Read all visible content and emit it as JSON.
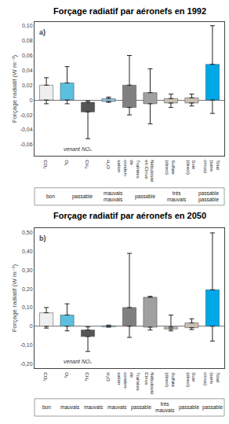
{
  "chart_data": [
    {
      "type": "bar",
      "title": "Forçage radiatif par aéronefs en 1992",
      "ylabel": "Forçage radiatif (W m⁻²)",
      "categories": [
        "CO₂",
        "O₃",
        "CH₄",
        "H₂O",
        "Traînées\nde\nconden-\nsation",
        "Nébulosité\nen Cirrus",
        "Sulfate\n(direct)",
        "Suie\n(direct)",
        "Total\n(sans\ncirrus)"
      ],
      "bottoms": [
        0.0,
        0.0,
        -0.016,
        -0.002,
        -0.01,
        -0.005,
        -0.004,
        -0.004,
        0.0
      ],
      "values": [
        0.02,
        0.023,
        -0.003,
        0.002,
        0.02,
        0.01,
        0.002,
        0.003,
        0.048
      ],
      "whisker_low": [
        -0.005,
        -0.005,
        -0.052,
        -0.003,
        -0.02,
        -0.032,
        -0.01,
        -0.008,
        -0.018
      ],
      "whisker_high": [
        0.03,
        0.045,
        -0.001,
        0.004,
        0.06,
        0.042,
        0.008,
        0.008,
        0.1
      ],
      "colors": [
        "#efefef",
        "#5bbfe0",
        "#555555",
        "#90c0dc",
        "#808080",
        "#a0a0a0",
        "#c8bfb0",
        "#c8bfb0",
        "#00a8e8"
      ],
      "ylim": [
        -0.075,
        0.105
      ],
      "yticks": [
        {
          "value": -0.06,
          "label": "-0,06"
        },
        {
          "value": -0.04,
          "label": "-0,04"
        },
        {
          "value": -0.02,
          "label": "-0,02"
        },
        0,
        {
          "value": 0.02,
          "label": "0,02"
        },
        {
          "value": 0.04,
          "label": "0,04"
        },
        {
          "value": 0.06,
          "label": "0,06"
        },
        {
          "value": 0.08,
          "label": "0,08"
        },
        {
          "value": 0.1,
          "label": "0,10"
        }
      ],
      "grid": false,
      "annotations": [
        "a)",
        "venant NOₓ"
      ],
      "ratings": [
        "bon",
        "passable",
        "mauvais\nmauvais",
        "passable",
        "très\nmauvais",
        "passable\npassable"
      ]
    },
    {
      "type": "bar",
      "title": "Forçage radiatif par aéronefs en 2050",
      "ylabel": "Forçage radiatif (W m⁻²)",
      "categories": [
        "CO₂",
        "O₃",
        "CH₄",
        "H₂O",
        "Traînées\nde\nconden-\nsation",
        "Nébulosité\nCirrus",
        "Sulfate\n(direct)",
        "Suie\n(direct)",
        "Total\n(sans\ncirrus)"
      ],
      "bottoms": [
        0.0,
        0.0,
        -0.055,
        -0.003,
        0.0,
        -0.005,
        -0.015,
        -0.008,
        0.0
      ],
      "values": [
        0.072,
        0.06,
        -0.02,
        0.003,
        0.1,
        0.155,
        -0.005,
        0.018,
        0.195
      ],
      "whisker_low": [
        -0.01,
        -0.025,
        -0.135,
        -0.005,
        -0.06,
        -0.02,
        -0.025,
        -0.018,
        -0.08
      ],
      "whisker_high": [
        0.1,
        0.12,
        -0.004,
        0.006,
        0.39,
        0.16,
        0.06,
        0.04,
        0.5
      ],
      "colors": [
        "#efefef",
        "#5bbfe0",
        "#555555",
        "#90c0dc",
        "#808080",
        "#a0a0a0",
        "#c8bfb0",
        "#c8bfb0",
        "#00a8e8"
      ],
      "ylim": [
        -0.225,
        0.525
      ],
      "yticks": [
        {
          "value": -0.2,
          "label": "-0,20"
        },
        {
          "value": -0.1,
          "label": "-0,10"
        },
        0,
        {
          "value": 0.1,
          "label": "0,10"
        },
        {
          "value": 0.2,
          "label": "0,20"
        },
        {
          "value": 0.3,
          "label": "0,30"
        },
        {
          "value": 0.4,
          "label": "0,40"
        },
        {
          "value": 0.5,
          "label": "0,50"
        }
      ],
      "grid": false,
      "annotations": [
        "b)",
        "venant NOₓ"
      ],
      "ratings": [
        "bon",
        "mauvais",
        "mauvais",
        "mauvais",
        "passable",
        "très\nmauvais",
        "passable",
        "passable"
      ]
    }
  ]
}
